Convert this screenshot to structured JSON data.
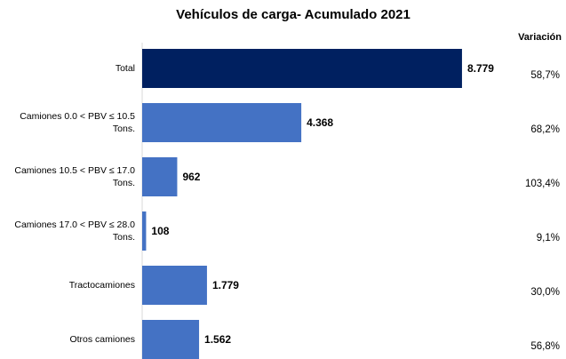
{
  "chart_data": {
    "type": "barh",
    "title": "Vehículos de carga- Acumulado 2021",
    "categories": [
      "Total",
      "Camiones 0.0 < PBV ≤ 10.5 Tons.",
      "Camiones 10.5 < PBV ≤ 17.0 Tons.",
      "Camiones 17.0 < PBV ≤ 28.0 Tons.",
      "Tractocamiones",
      "Otros camiones"
    ],
    "values": [
      8779,
      4368,
      962,
      108,
      1779,
      1562
    ],
    "value_labels": [
      "8.779",
      "4.368",
      "962",
      "108",
      "1.779",
      "1.562"
    ],
    "colors": [
      "#002060",
      "#4472c4",
      "#4472c4",
      "#4472c4",
      "#4472c4",
      "#4472c4"
    ],
    "xlim": [
      0,
      9000
    ],
    "variation": {
      "name": "Variación",
      "values": [
        58.7,
        68.2,
        103.4,
        9.1,
        30.0,
        56.8
      ],
      "value_labels": [
        "58,7%",
        "68,2%",
        "103,4%",
        "9,1%",
        "30,0%",
        "56,8%"
      ]
    }
  }
}
